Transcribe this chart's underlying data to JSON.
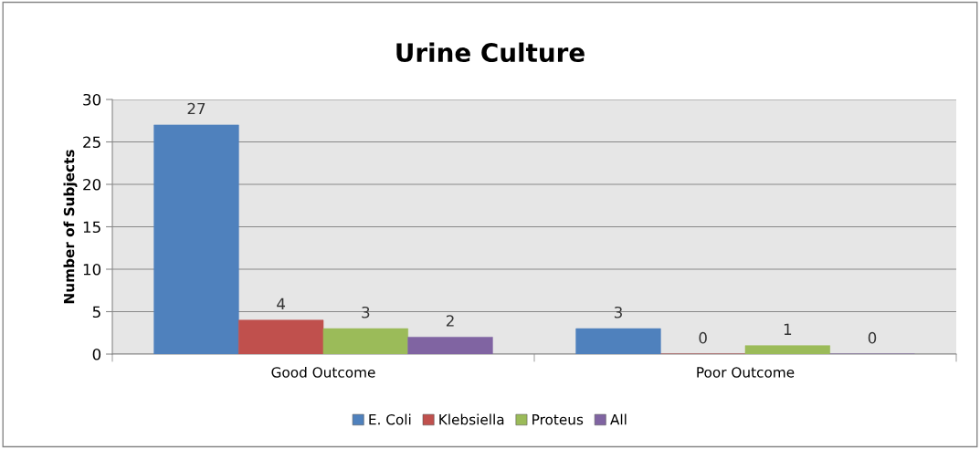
{
  "chart_data": {
    "type": "bar",
    "title": "Urine Culture",
    "ylabel": "Number of Subjects",
    "categories": [
      "Good Outcome",
      "Poor Outcome"
    ],
    "series": [
      {
        "name": "E. Coli",
        "color": "#4f81bd",
        "values": [
          27,
          3
        ]
      },
      {
        "name": "Klebsiella",
        "color": "#c0504d",
        "values": [
          4,
          0
        ]
      },
      {
        "name": "Proteus",
        "color": "#9bbb59",
        "values": [
          3,
          1
        ]
      },
      {
        "name": "All",
        "color": "#8064a2",
        "values": [
          2,
          0
        ]
      }
    ],
    "ylim": [
      0,
      30
    ],
    "yticks": [
      0,
      5,
      10,
      15,
      20,
      25,
      30
    ],
    "grid": "y",
    "legend": "bottom",
    "data_labels": true
  }
}
